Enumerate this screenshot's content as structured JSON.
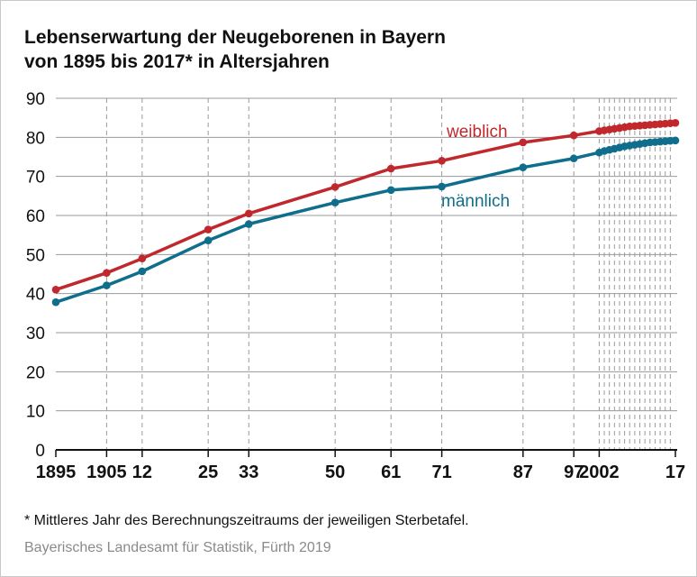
{
  "title_line1": "Lebenserwartung der Neugeborenen in Bayern",
  "title_line2": "von 1895 bis 2017* in Altersjahren",
  "footnote": "*  Mittleres Jahr des Berechnungszeitraums der jeweiligen Sterbetafel.",
  "source": "Bayerisches Landesamt für Statistik, Fürth 2019",
  "colors": {
    "weiblich": "#c0282d",
    "maennlich": "#0f6e8c",
    "grid": "#9a9a9a",
    "axis": "#111111"
  },
  "chart_data": {
    "type": "line",
    "title": "Lebenserwartung der Neugeborenen in Bayern von 1895 bis 2017* in Altersjahren",
    "xlabel": "",
    "ylabel": "",
    "ylim": [
      0,
      90
    ],
    "yticks": [
      0,
      10,
      20,
      30,
      40,
      50,
      60,
      70,
      80,
      90
    ],
    "xlim": [
      1895,
      2017
    ],
    "xtick_values": [
      1895,
      1905,
      1912,
      1925,
      1933,
      1950,
      1961,
      1971,
      1987,
      1997,
      2002,
      2017
    ],
    "xtick_labels": [
      "1895",
      "1905",
      "12",
      "25",
      "33",
      "50",
      "61",
      "71",
      "87",
      "97",
      "2002",
      "17"
    ],
    "dashed_guides_at": [
      1905,
      1912,
      1925,
      1933,
      1950,
      1961,
      1971,
      1987,
      1997,
      2002,
      2003,
      2004,
      2005,
      2006,
      2007,
      2008,
      2009,
      2010,
      2011,
      2012,
      2013,
      2014,
      2015,
      2016
    ],
    "grid": true,
    "series": [
      {
        "name": "weiblich",
        "color": "#c0282d",
        "x": [
          1895,
          1905,
          1912,
          1925,
          1933,
          1950,
          1961,
          1971,
          1987,
          1997,
          2002,
          2003,
          2004,
          2005,
          2006,
          2007,
          2008,
          2009,
          2010,
          2011,
          2012,
          2013,
          2014,
          2015,
          2016,
          2017
        ],
        "y": [
          41.0,
          45.3,
          49.0,
          56.4,
          60.5,
          67.3,
          72.0,
          74.0,
          78.7,
          80.5,
          81.6,
          81.8,
          82.0,
          82.2,
          82.4,
          82.6,
          82.8,
          82.9,
          83.0,
          83.1,
          83.2,
          83.3,
          83.4,
          83.5,
          83.6,
          83.7
        ]
      },
      {
        "name": "männlich",
        "color": "#0f6e8c",
        "x": [
          1895,
          1905,
          1912,
          1925,
          1933,
          1950,
          1961,
          1971,
          1987,
          1997,
          2002,
          2003,
          2004,
          2005,
          2006,
          2007,
          2008,
          2009,
          2010,
          2011,
          2012,
          2013,
          2014,
          2015,
          2016,
          2017
        ],
        "y": [
          37.8,
          42.1,
          45.7,
          53.6,
          57.8,
          63.3,
          66.5,
          67.4,
          72.3,
          74.6,
          76.1,
          76.5,
          76.8,
          77.1,
          77.4,
          77.7,
          77.9,
          78.1,
          78.3,
          78.5,
          78.7,
          78.8,
          78.9,
          79.0,
          79.1,
          79.2
        ]
      }
    ],
    "annotations": [
      "weiblich",
      "männlich"
    ]
  }
}
